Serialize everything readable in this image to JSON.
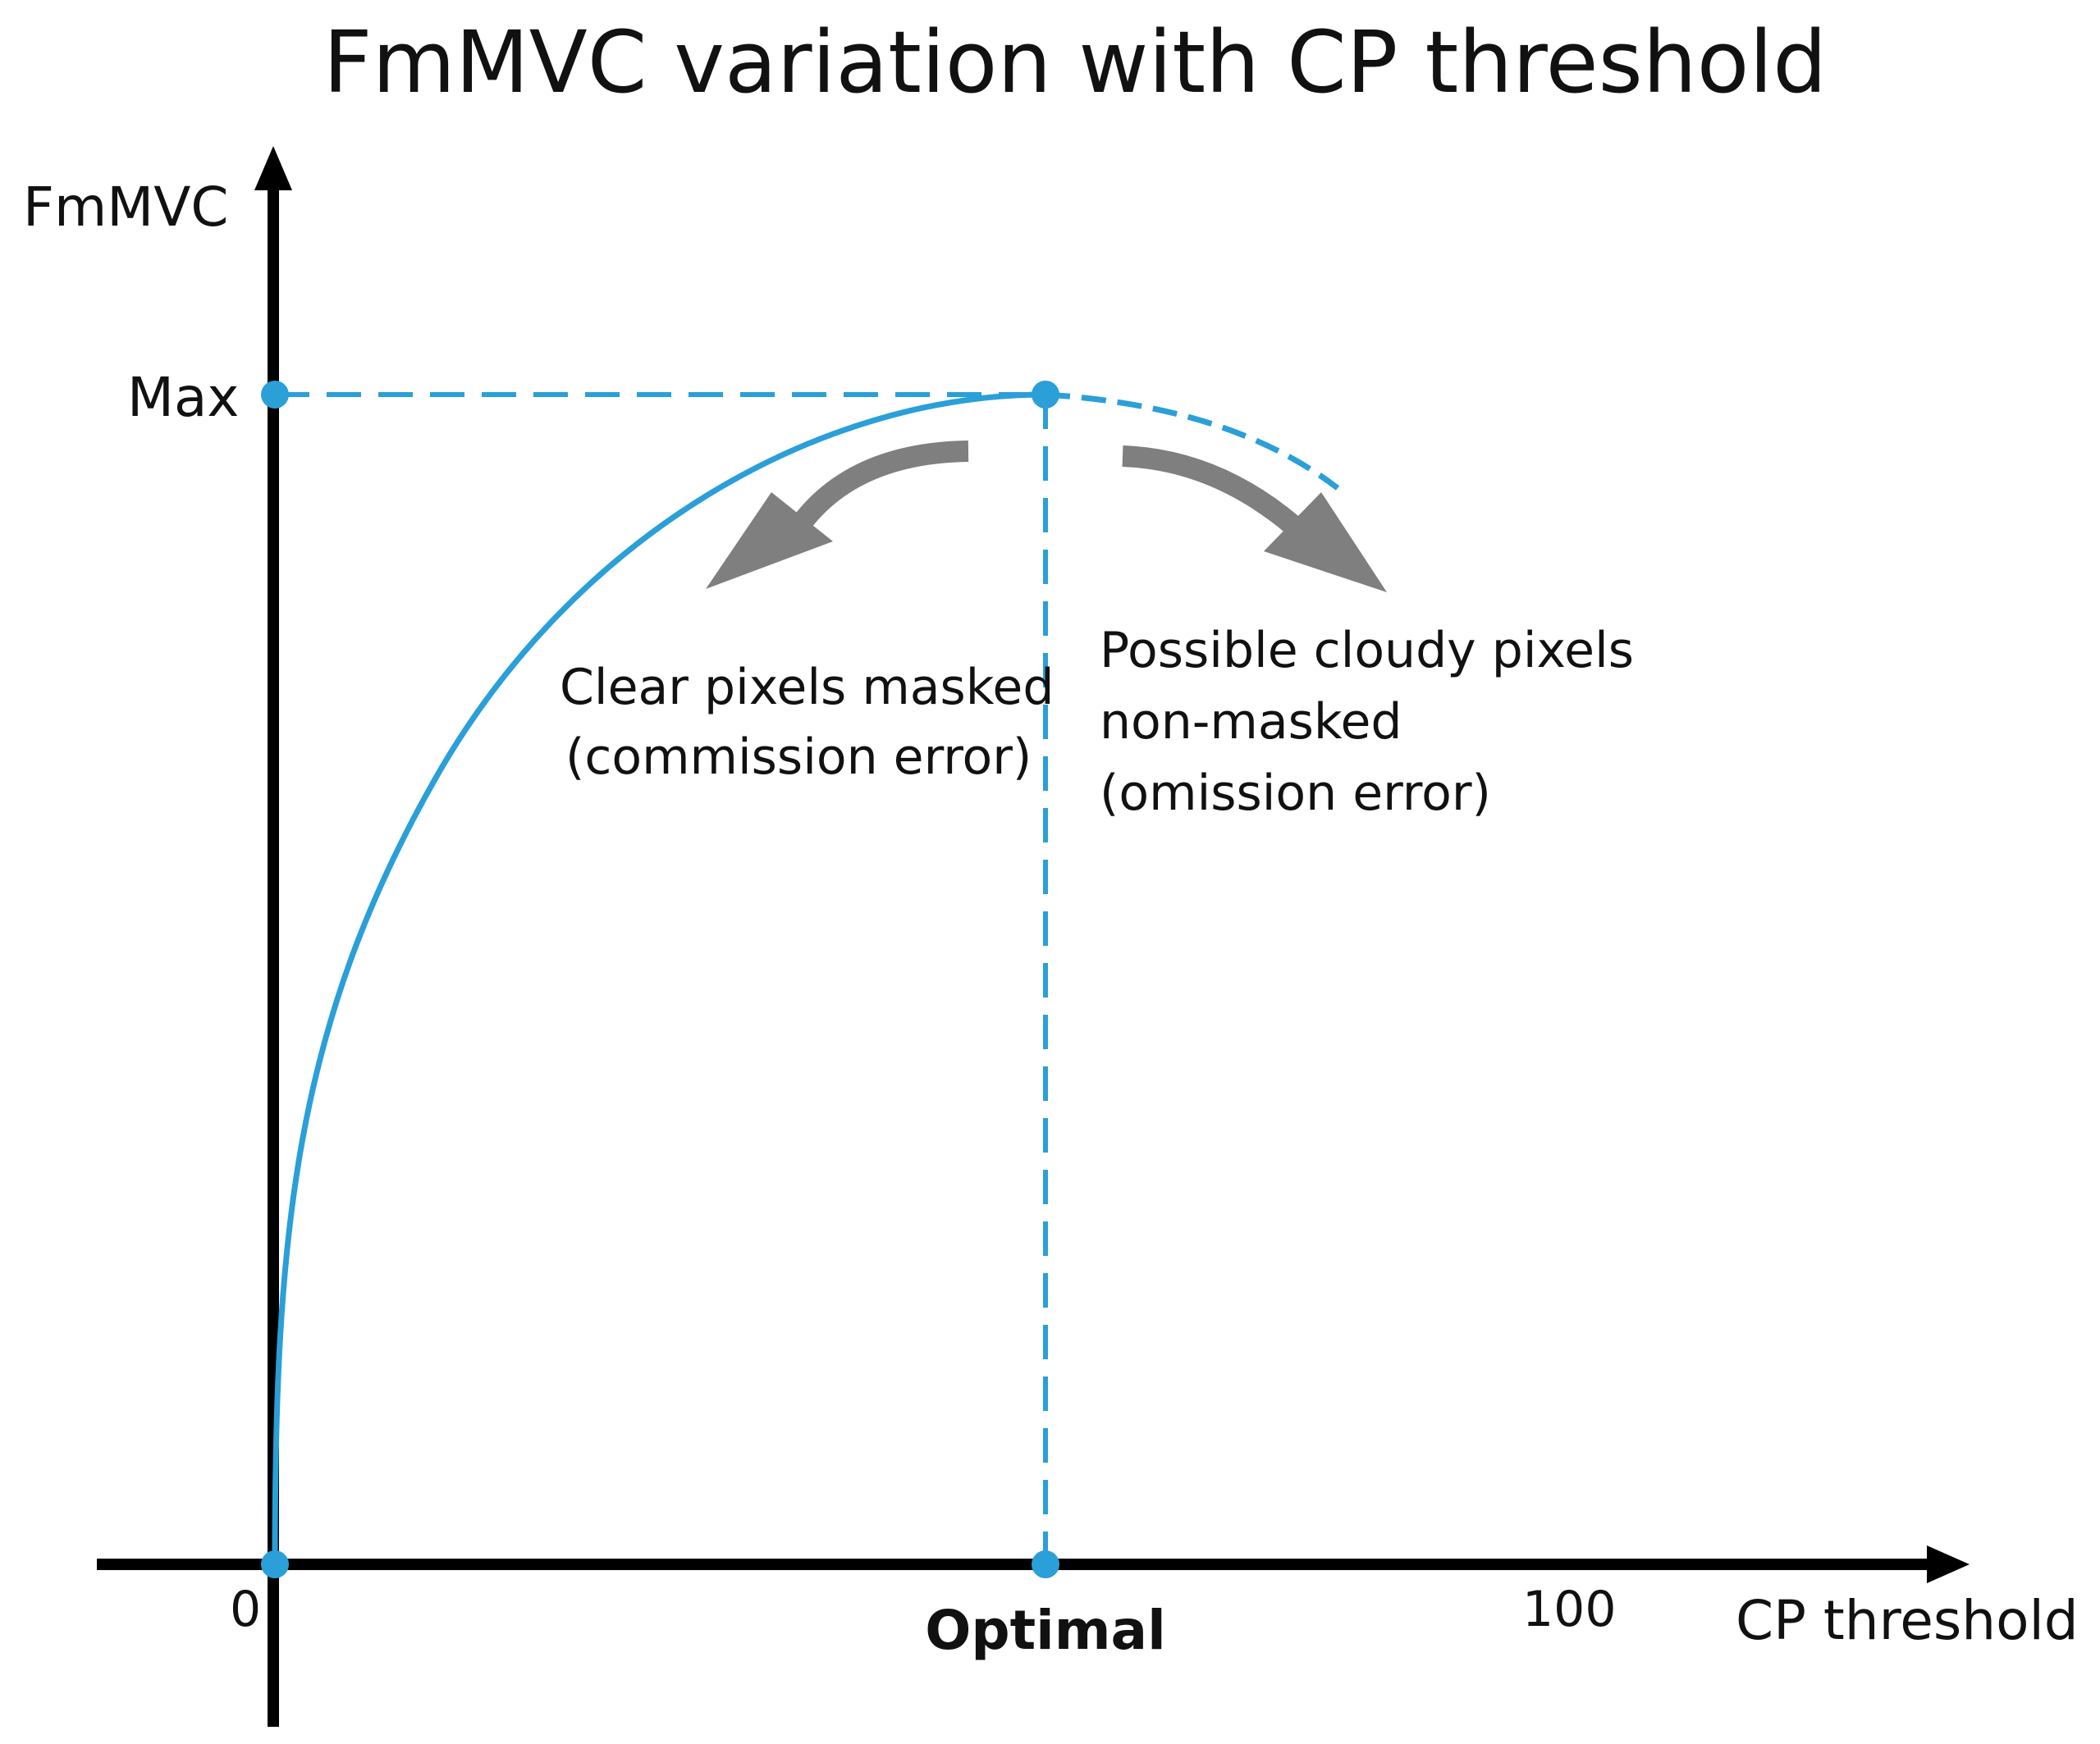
{
  "title": "FmMVC variation with CP threshold",
  "y_axis_label": "FmMVC",
  "x_axis_label": "CP threshold",
  "y_max_label": "Max",
  "x_origin_label": "0",
  "x_optimal_label": "Optimal",
  "x_end_label": "100",
  "left_annotation": {
    "line1": "Clear pixels masked",
    "line2": "(commission error)"
  },
  "right_annotation": {
    "line1": "Possible cloudy pixels",
    "line2": "non-masked",
    "line3": "(omission error)"
  },
  "colors": {
    "curve": "#2a9fd8",
    "axis": "#000000",
    "arrow": "#7f7f7f",
    "text": "#111111"
  }
}
